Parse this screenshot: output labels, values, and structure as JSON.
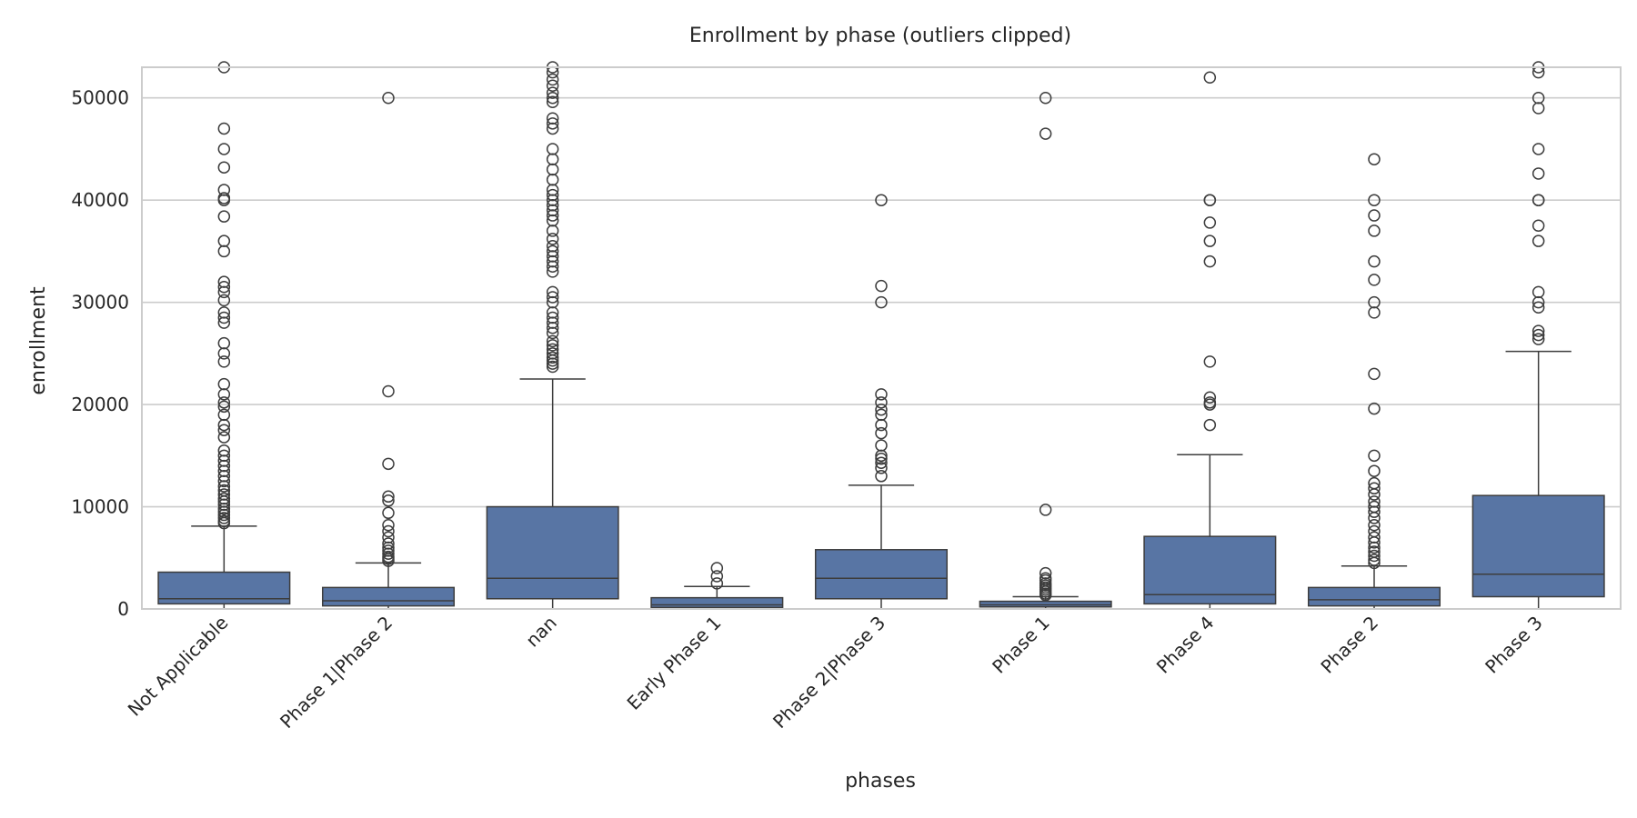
{
  "chart_data": {
    "type": "box",
    "title": "Enrollment by phase (outliers clipped)",
    "xlabel": "phases",
    "ylabel": "enrollment",
    "ylim": [
      0,
      53000
    ],
    "yticks": [
      0,
      10000,
      20000,
      30000,
      40000,
      50000
    ],
    "grid": "horizontal",
    "colors": {
      "box": "#5875a4",
      "line": "#3d3d3d",
      "grid": "#cccccc",
      "frame": "#cccccc"
    },
    "categories": [
      "Not Applicable",
      "Phase 1|Phase 2",
      "nan",
      "Early Phase 1",
      "Phase 2|Phase 3",
      "Phase 1",
      "Phase 4",
      "Phase 2",
      "Phase 3"
    ],
    "boxes": [
      {
        "category": "Not Applicable",
        "whisker_low": 0,
        "q1": 500,
        "median": 1000,
        "q3": 3600,
        "whisker_high": 8100,
        "outliers": [
          53000,
          47000,
          45000,
          43200,
          41000,
          40200,
          40000,
          38400,
          36000,
          35000,
          32000,
          31500,
          31000,
          30200,
          29000,
          28500,
          28000,
          26000,
          25000,
          24200,
          22000,
          21000,
          20200,
          19800,
          19000,
          18000,
          17500,
          16800,
          15500,
          15000,
          14500,
          14000,
          13500,
          13000,
          12500,
          12000,
          11600,
          11200,
          10800,
          10500,
          10200,
          9800,
          9500,
          9200,
          8900,
          8600,
          8400
        ]
      },
      {
        "category": "Phase 1|Phase 2",
        "whisker_low": 0,
        "q1": 300,
        "median": 800,
        "q3": 2100,
        "whisker_high": 4500,
        "outliers": [
          50000,
          21300,
          14200,
          11000,
          10600,
          9400,
          8200,
          7600,
          7000,
          6400,
          6000,
          5700,
          5400,
          5100,
          4900,
          4700
        ]
      },
      {
        "category": "nan",
        "whisker_low": 0,
        "q1": 1000,
        "median": 3000,
        "q3": 10000,
        "whisker_high": 22500,
        "outliers": [
          53000,
          52500,
          51800,
          51200,
          50500,
          50000,
          49600,
          48000,
          47500,
          47000,
          45000,
          44000,
          43000,
          42000,
          41000,
          40500,
          40000,
          39500,
          39000,
          38500,
          38000,
          37000,
          36200,
          35500,
          35000,
          34500,
          34000,
          33500,
          33000,
          31000,
          30500,
          30000,
          29000,
          28500,
          28000,
          27500,
          27000,
          26200,
          25800,
          25400,
          25000,
          24600,
          24300,
          24000,
          23700
        ]
      },
      {
        "category": "Early Phase 1",
        "whisker_low": 0,
        "q1": 150,
        "median": 400,
        "q3": 1100,
        "whisker_high": 2200,
        "outliers": [
          4000,
          3200,
          2500
        ]
      },
      {
        "category": "Phase 2|Phase 3",
        "whisker_low": 0,
        "q1": 1000,
        "median": 3000,
        "q3": 5800,
        "whisker_high": 12100,
        "outliers": [
          40000,
          31600,
          30000,
          21000,
          20200,
          19500,
          19000,
          18000,
          17200,
          16000,
          15000,
          14700,
          14300,
          13800,
          13000
        ]
      },
      {
        "category": "Phase 1",
        "whisker_low": 0,
        "q1": 200,
        "median": 400,
        "q3": 750,
        "whisker_high": 1200,
        "outliers": [
          50000,
          46500,
          9700,
          3500,
          3000,
          2800,
          2500,
          2300,
          2100,
          1900,
          1700,
          1500,
          1350
        ]
      },
      {
        "category": "Phase 4",
        "whisker_low": 0,
        "q1": 500,
        "median": 1400,
        "q3": 7100,
        "whisker_high": 15100,
        "outliers": [
          52000,
          40000,
          40000,
          37800,
          36000,
          34000,
          24200,
          20700,
          20200,
          20000,
          18000
        ]
      },
      {
        "category": "Phase 2",
        "whisker_low": 0,
        "q1": 300,
        "median": 900,
        "q3": 2100,
        "whisker_high": 4200,
        "outliers": [
          44000,
          40000,
          38500,
          37000,
          34000,
          32200,
          30000,
          29000,
          23000,
          19600,
          15000,
          13500,
          12300,
          11800,
          11200,
          10500,
          10000,
          9500,
          8900,
          8200,
          7600,
          7000,
          6500,
          6000,
          5600,
          5200,
          4800,
          4500
        ]
      },
      {
        "category": "Phase 3",
        "whisker_low": 0,
        "q1": 1200,
        "median": 3400,
        "q3": 11100,
        "whisker_high": 25200,
        "outliers": [
          53000,
          52500,
          50000,
          49000,
          45000,
          42600,
          40000,
          40000,
          37500,
          36000,
          31000,
          30000,
          29500,
          27200,
          26800,
          26400
        ]
      }
    ]
  }
}
